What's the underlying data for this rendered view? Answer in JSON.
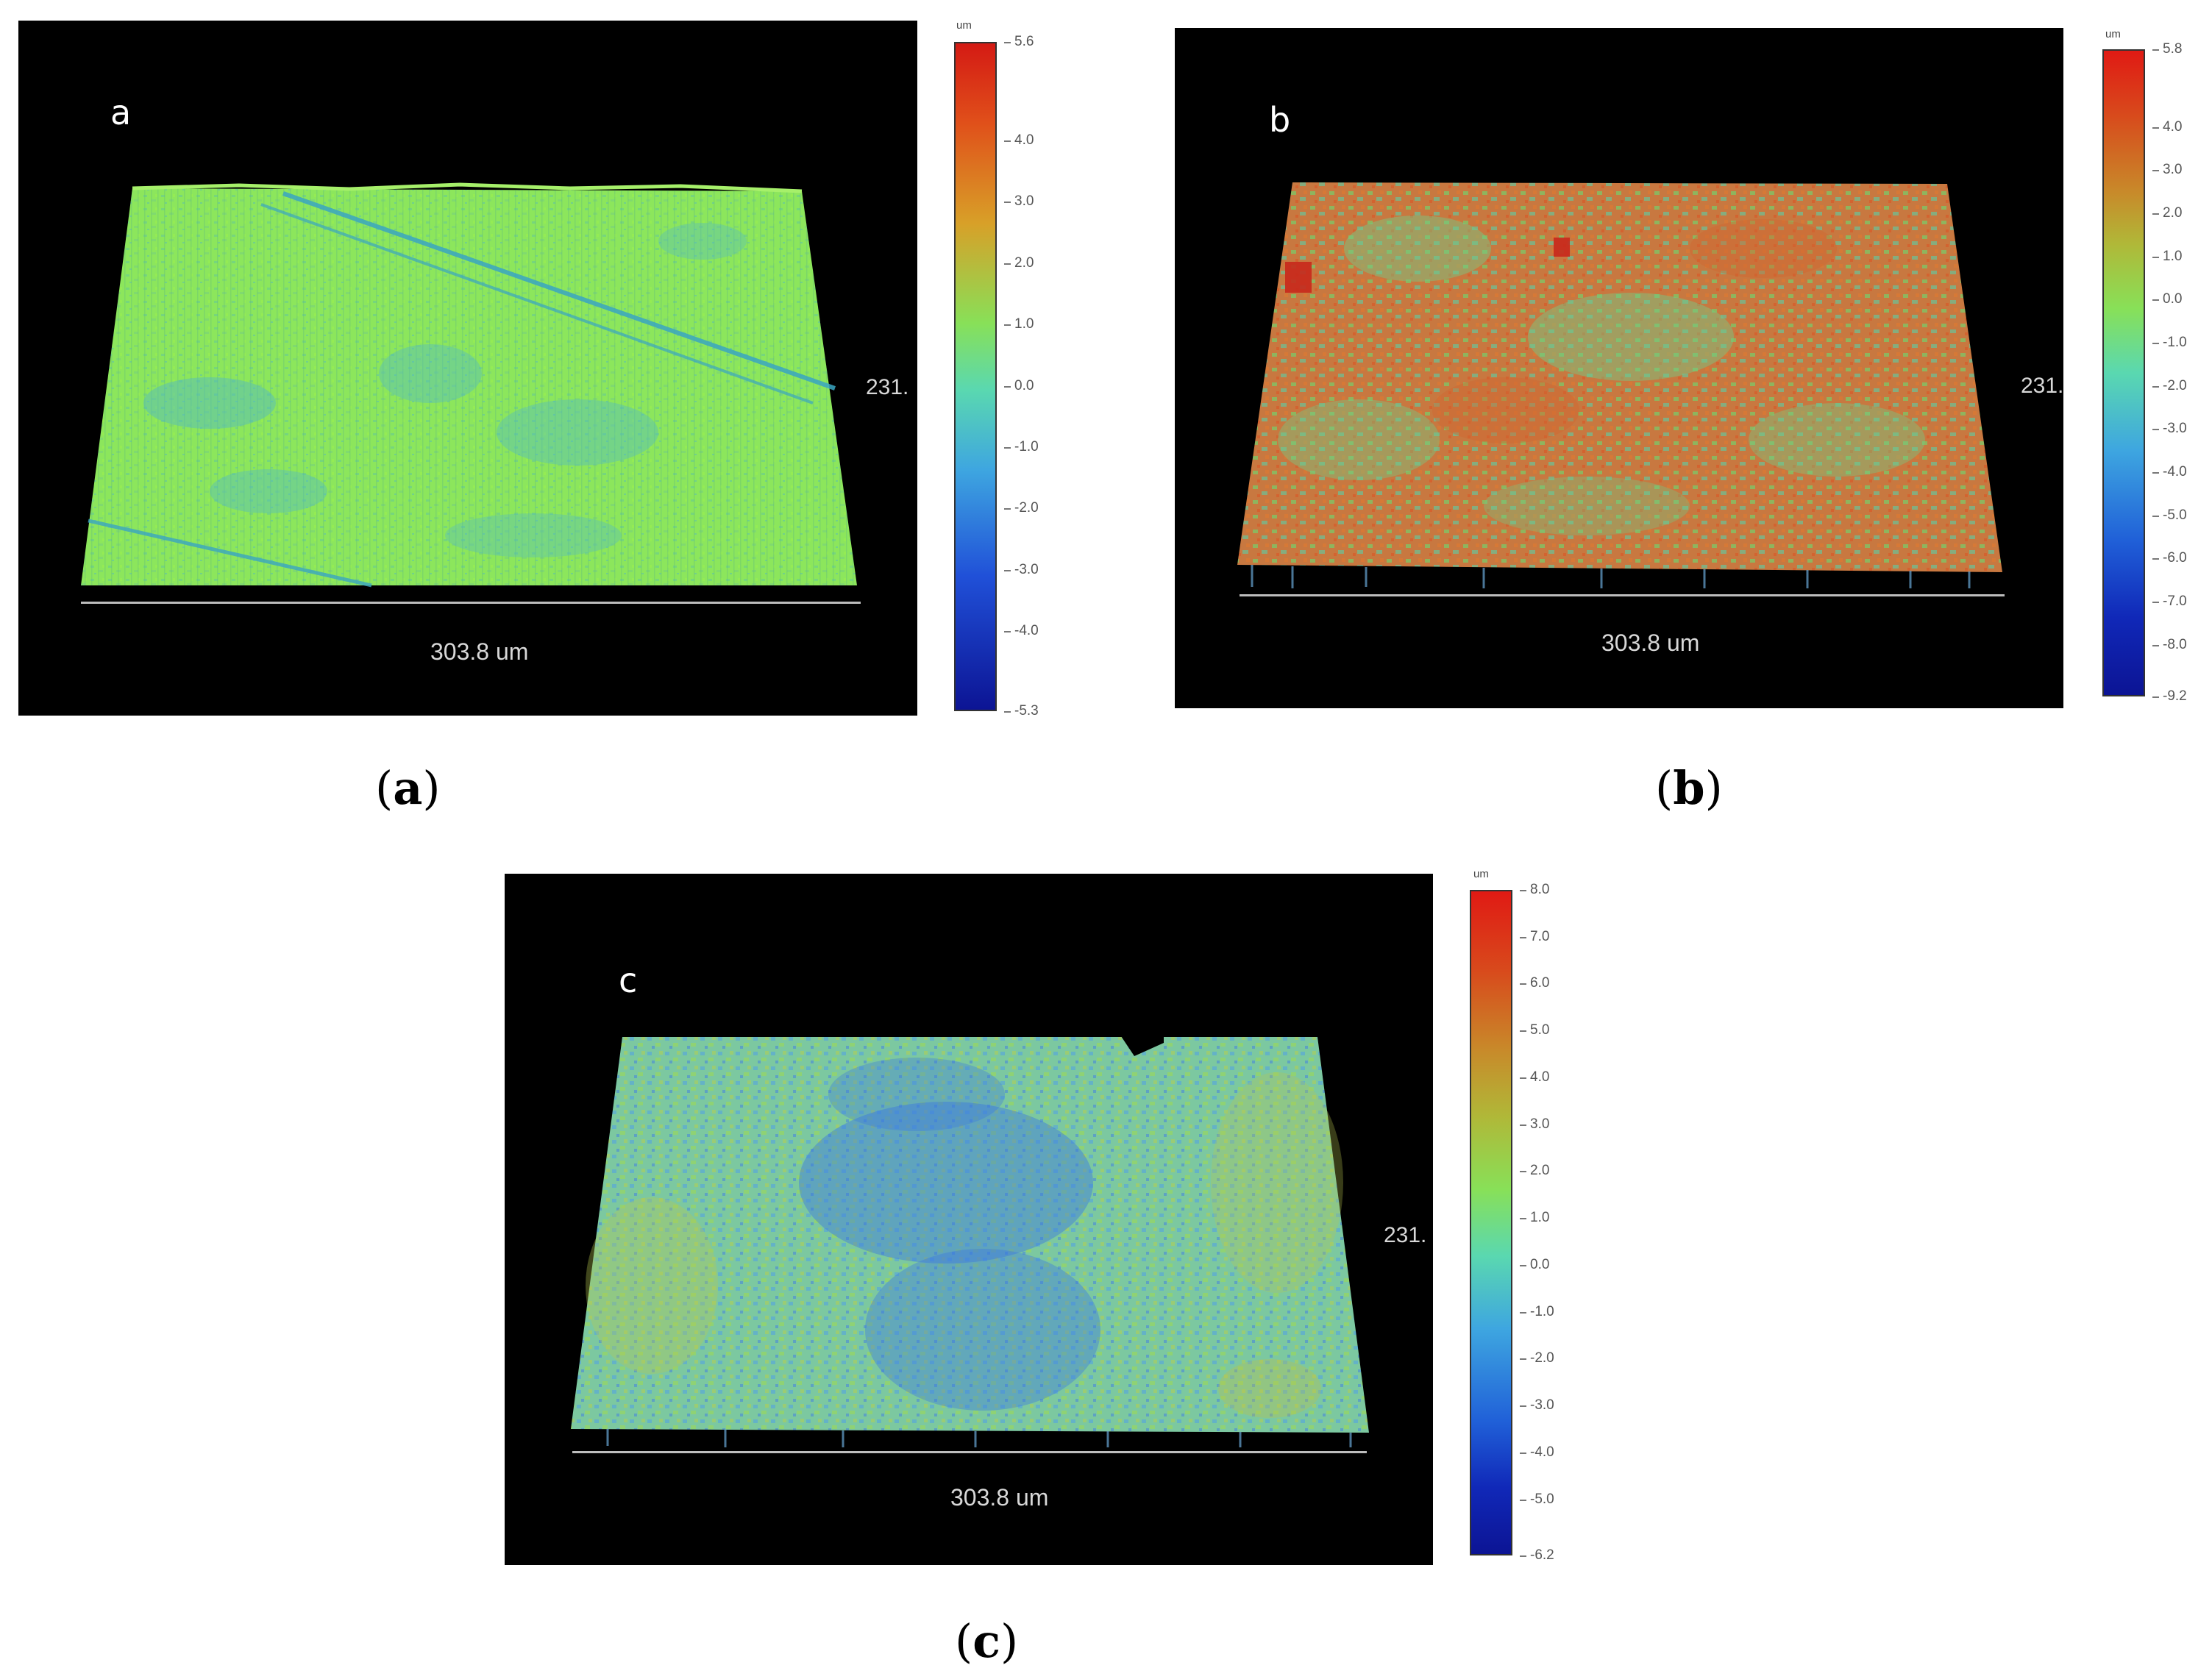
{
  "panels": [
    {
      "letter": "a",
      "scale_label": "303.8 um",
      "side_label": "231.",
      "colorbar": {
        "unit": "um",
        "max": "5.6",
        "min": "-5.3",
        "ticks": [
          "4.0",
          "3.0",
          "2.0",
          "1.0",
          "0.0",
          "-1.0",
          "-2.0",
          "-3.0",
          "-4.0"
        ]
      },
      "dominant_color": "#86e85a",
      "caption": "a"
    },
    {
      "letter": "b",
      "scale_label": "303.8 um",
      "side_label": "231.",
      "colorbar": {
        "unit": "um",
        "max": "5.8",
        "min": "-9.2",
        "ticks": [
          "4.0",
          "3.0",
          "2.0",
          "1.0",
          "0.0",
          "-1.0",
          "-2.0",
          "-3.0",
          "-4.0",
          "-5.0",
          "-6.0",
          "-7.0",
          "-8.0"
        ]
      },
      "dominant_color": "#d0703a",
      "caption": "b"
    },
    {
      "letter": "c",
      "scale_label": "303.8 um",
      "side_label": "231.",
      "colorbar": {
        "unit": "um",
        "max": "8.0",
        "min": "-6.2",
        "ticks": [
          "7.0",
          "6.0",
          "5.0",
          "4.0",
          "3.0",
          "2.0",
          "1.0",
          "0.0",
          "-1.0",
          "-2.0",
          "-3.0",
          "-4.0",
          "-5.0"
        ]
      },
      "dominant_color": "#5ab0d8",
      "caption": "c"
    }
  ]
}
